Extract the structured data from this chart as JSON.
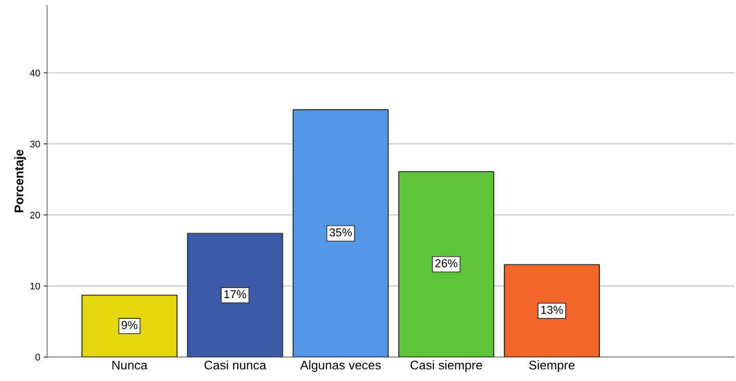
{
  "chart_data": {
    "type": "bar",
    "ylabel": "Porcentaje",
    "categories": [
      "Nunca",
      "Casi nunca",
      "Algunas veces",
      "Casi siempre",
      "Siempre"
    ],
    "values": [
      8.7,
      17.4,
      34.8,
      26.1,
      13.0
    ],
    "value_labels": [
      "9%",
      "17%",
      "35%",
      "26%",
      "13%"
    ],
    "colors": [
      "#e5d80f",
      "#3d5aa8",
      "#5497e6",
      "#5fc43a",
      "#f2662a"
    ],
    "ylim": [
      0,
      49.5
    ],
    "yticks": [
      0,
      10,
      20,
      30,
      40
    ],
    "grid": "y",
    "legend": false
  }
}
